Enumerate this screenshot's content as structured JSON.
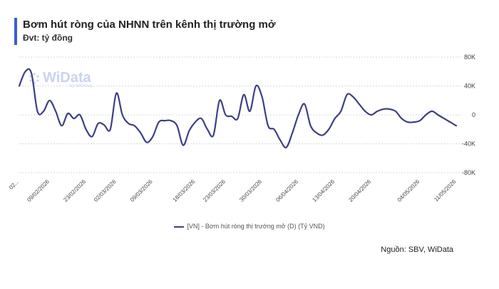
{
  "header": {
    "title": "Bơm hút ròng của NHNN trên kênh thị trường mở",
    "unit": "Đvt: tỷ đồng"
  },
  "legend": {
    "label": "[VN] - Bơm hút ròng thị trường mở (D) (Tỷ VND)"
  },
  "source": "Nguồn: SBV, WiData",
  "watermark": {
    "name": "WiData",
    "sub": "by WiGroup"
  },
  "colors": {
    "line": "#3d3f86",
    "accent": "#3b5bdb",
    "grid": "#d9d9d9"
  },
  "chart_data": {
    "type": "line",
    "title": "Bơm hút ròng của NHNN trên kênh thị trường mở",
    "ylabel": "",
    "xlabel": "",
    "ylim": [
      -80000,
      80000
    ],
    "yticks": [
      80000,
      40000,
      0,
      -40000,
      -80000
    ],
    "ytick_labels": [
      "80K",
      "40K",
      "0",
      "-40K",
      "-80K"
    ],
    "xtick_labels": [
      "02...",
      "09/02/2026",
      "23/02/2026",
      "02/03/2026",
      "09/03/2026",
      "18/03/2026",
      "23/03/2026",
      "30/03/2026",
      "06/04/2026",
      "13/04/2026",
      "20/04/2026",
      "04/05/2026",
      "11/05/2026"
    ],
    "xtick_positions": [
      0,
      5,
      11,
      16,
      22,
      29,
      34,
      40,
      46,
      52,
      58,
      66,
      72
    ],
    "series": [
      {
        "name": "[VN] - Bơm hút ròng thị trường mở (D) (Tỷ VND)",
        "values": [
          40000,
          60000,
          58000,
          5000,
          5000,
          20000,
          5000,
          -15000,
          2000,
          -5000,
          0,
          -20000,
          -30000,
          -12000,
          -14000,
          -20000,
          30000,
          0,
          -12000,
          -15000,
          -25000,
          -38000,
          -30000,
          -10000,
          -8000,
          -8000,
          -15000,
          -42000,
          -22000,
          -10000,
          -5000,
          -20000,
          -28000,
          20000,
          0,
          -2000,
          -5000,
          28000,
          5000,
          40000,
          25000,
          -15000,
          -20000,
          -35000,
          -45000,
          -25000,
          0,
          15000,
          -15000,
          -25000,
          -28000,
          -20000,
          -5000,
          5000,
          28000,
          25000,
          15000,
          5000,
          0,
          5000,
          8000,
          8000,
          5000,
          -5000,
          -10000,
          -10000,
          -8000,
          0,
          5000,
          0,
          -5000,
          -10000,
          -15000
        ]
      }
    ]
  }
}
